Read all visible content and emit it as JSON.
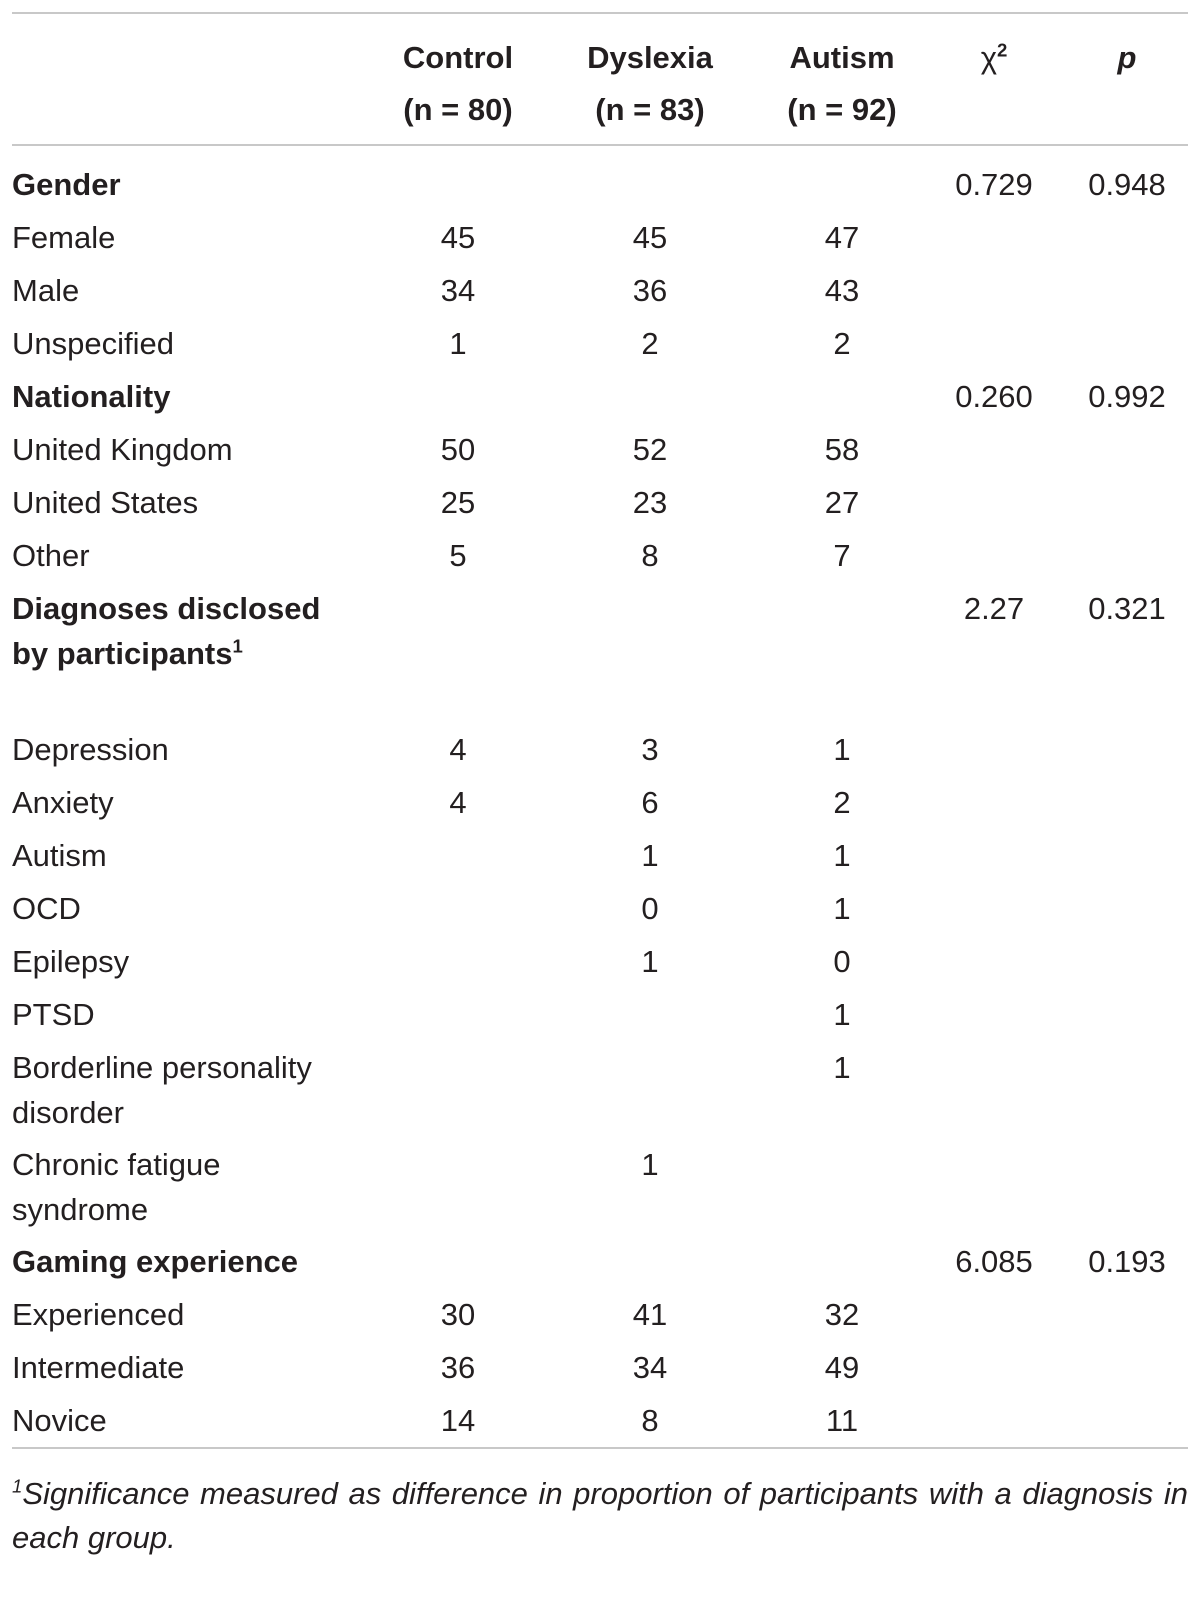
{
  "header": {
    "control": {
      "name": "Control",
      "n": "(n = 80)"
    },
    "dyslexia": {
      "name": "Dyslexia",
      "n": "(n = 83)"
    },
    "autism": {
      "name": "Autism",
      "n": "(n = 92)"
    },
    "chi": "χ",
    "chi_sup": "2",
    "p": "p"
  },
  "rows": [
    {
      "label": "Gender",
      "group": true,
      "chi": "0.729",
      "p": "0.948"
    },
    {
      "label": "Female",
      "c": "45",
      "d": "45",
      "a": "47"
    },
    {
      "label": "Male",
      "c": "34",
      "d": "36",
      "a": "43"
    },
    {
      "label": "Unspecified",
      "c": "1",
      "d": "2",
      "a": "2"
    },
    {
      "label": "Nationality",
      "group": true,
      "chi": "0.260",
      "p": "0.992"
    },
    {
      "label": "United Kingdom",
      "c": "50",
      "d": "52",
      "a": "58"
    },
    {
      "label": "United States",
      "c": "25",
      "d": "23",
      "a": "27"
    },
    {
      "label": "Other",
      "c": "5",
      "d": "8",
      "a": "7"
    },
    {
      "label": "Diagnoses disclosed by participants",
      "label_sup": "1",
      "group": true,
      "chi": "2.27",
      "p": "0.321"
    },
    {
      "label": "Depression",
      "c": "4",
      "d": "3",
      "a": "1"
    },
    {
      "label": "Anxiety",
      "c": "4",
      "d": "6",
      "a": "2"
    },
    {
      "label": "Autism",
      "c": "",
      "d": "1",
      "a": "1"
    },
    {
      "label": "OCD",
      "c": "",
      "d": "0",
      "a": "1"
    },
    {
      "label": "Epilepsy",
      "c": "",
      "d": "1",
      "a": "0"
    },
    {
      "label": "PTSD",
      "c": "",
      "d": "",
      "a": "1"
    },
    {
      "label": "Borderline personality disorder",
      "c": "",
      "d": "",
      "a": "1"
    },
    {
      "label": "Chronic fatigue syndrome",
      "c": "",
      "d": "1",
      "a": ""
    },
    {
      "label": "Gaming experience",
      "group": true,
      "chi": "6.085",
      "p": "0.193"
    },
    {
      "label": "Experienced",
      "c": "30",
      "d": "41",
      "a": "32"
    },
    {
      "label": "Intermediate",
      "c": "36",
      "d": "34",
      "a": "49"
    },
    {
      "label": "Novice",
      "c": "14",
      "d": "8",
      "a": "11"
    }
  ],
  "footnote": {
    "marker": "1",
    "text": "Significance measured as difference in proportion of participants with a diagnosis in each group."
  }
}
